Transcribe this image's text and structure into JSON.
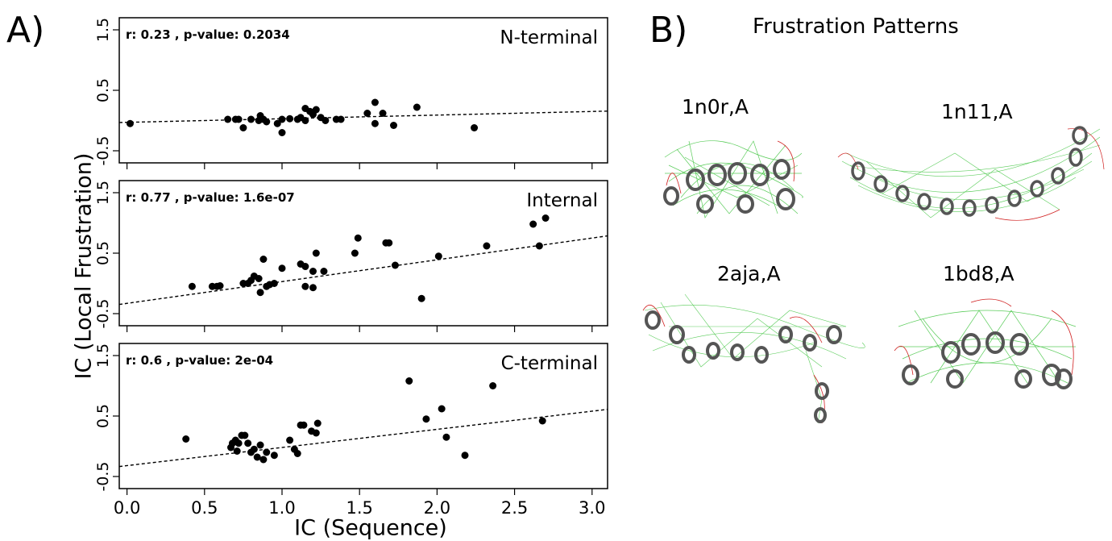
{
  "panel_a_letter": "A)",
  "panel_b_letter": "B)",
  "ylabel": "IC (Local Frustration)",
  "xlabel": "IC (Sequence)",
  "chart_data": [
    {
      "type": "scatter",
      "name": "N-terminal",
      "annotation": "r:  0.23 , p-value:  0.2034",
      "xlim": [
        -0.05,
        3.1
      ],
      "ylim": [
        -0.7,
        1.7
      ],
      "yticks": [
        "-0.5",
        "0.5",
        "1.5"
      ],
      "xticks": [],
      "fit": {
        "slope": 0.06,
        "intercept": -0.03
      },
      "points": [
        [
          0.02,
          -0.05
        ],
        [
          0.65,
          0.02
        ],
        [
          0.7,
          0.02
        ],
        [
          0.72,
          0.02
        ],
        [
          0.75,
          -0.12
        ],
        [
          0.8,
          0.02
        ],
        [
          0.85,
          0.0
        ],
        [
          0.86,
          0.08
        ],
        [
          0.88,
          0.02
        ],
        [
          0.9,
          -0.02
        ],
        [
          0.97,
          -0.05
        ],
        [
          1.0,
          0.02
        ],
        [
          1.0,
          -0.2
        ],
        [
          1.05,
          0.03
        ],
        [
          1.1,
          0.02
        ],
        [
          1.12,
          0.05
        ],
        [
          1.15,
          0.2
        ],
        [
          1.15,
          0.0
        ],
        [
          1.18,
          0.15
        ],
        [
          1.2,
          0.1
        ],
        [
          1.22,
          0.18
        ],
        [
          1.25,
          0.05
        ],
        [
          1.28,
          0.0
        ],
        [
          1.35,
          0.02
        ],
        [
          1.38,
          0.02
        ],
        [
          1.55,
          0.12
        ],
        [
          1.6,
          0.3
        ],
        [
          1.6,
          -0.05
        ],
        [
          1.65,
          0.12
        ],
        [
          1.72,
          -0.08
        ],
        [
          1.87,
          0.22
        ],
        [
          2.24,
          -0.12
        ]
      ]
    },
    {
      "type": "scatter",
      "name": "Internal",
      "annotation": "r:  0.77 , p-value:  1.6e-07",
      "xlim": [
        -0.05,
        3.1
      ],
      "ylim": [
        -0.7,
        1.7
      ],
      "yticks": [
        "-0.5",
        "0.5",
        "1.5"
      ],
      "xticks": [],
      "fit": {
        "slope": 0.36,
        "intercept": -0.33
      },
      "points": [
        [
          0.42,
          -0.05
        ],
        [
          0.55,
          -0.05
        ],
        [
          0.58,
          -0.05
        ],
        [
          0.6,
          -0.04
        ],
        [
          0.75,
          0.0
        ],
        [
          0.78,
          0.0
        ],
        [
          0.8,
          0.05
        ],
        [
          0.82,
          0.12
        ],
        [
          0.85,
          0.08
        ],
        [
          0.86,
          -0.15
        ],
        [
          0.88,
          0.4
        ],
        [
          0.9,
          -0.05
        ],
        [
          0.92,
          -0.02
        ],
        [
          0.95,
          0.0
        ],
        [
          1.0,
          0.25
        ],
        [
          1.12,
          0.32
        ],
        [
          1.15,
          0.28
        ],
        [
          1.15,
          -0.05
        ],
        [
          1.2,
          0.2
        ],
        [
          1.2,
          -0.07
        ],
        [
          1.22,
          0.5
        ],
        [
          1.27,
          0.2
        ],
        [
          1.47,
          0.5
        ],
        [
          1.49,
          0.75
        ],
        [
          1.67,
          0.67
        ],
        [
          1.69,
          0.67
        ],
        [
          1.73,
          0.3
        ],
        [
          1.9,
          -0.25
        ],
        [
          2.01,
          0.45
        ],
        [
          2.32,
          0.62
        ],
        [
          2.62,
          0.98
        ],
        [
          2.66,
          0.62
        ],
        [
          2.7,
          1.08
        ]
      ]
    },
    {
      "type": "scatter",
      "name": "C-terminal",
      "annotation": "r:  0.6 , p-value:  2e-04",
      "xlim": [
        -0.05,
        3.1
      ],
      "ylim": [
        -0.7,
        1.7
      ],
      "yticks": [
        "-0.5",
        "0.5",
        "1.5"
      ],
      "xticks": [
        "0.0",
        "0.5",
        "1.0",
        "1.5",
        "2.0",
        "2.5",
        "3.0"
      ],
      "fit": {
        "slope": 0.3,
        "intercept": -0.32
      },
      "points": [
        [
          0.38,
          0.12
        ],
        [
          0.67,
          -0.02
        ],
        [
          0.68,
          0.05
        ],
        [
          0.7,
          0.1
        ],
        [
          0.71,
          -0.08
        ],
        [
          0.72,
          0.05
        ],
        [
          0.74,
          0.18
        ],
        [
          0.76,
          0.18
        ],
        [
          0.78,
          0.05
        ],
        [
          0.8,
          -0.1
        ],
        [
          0.82,
          -0.05
        ],
        [
          0.84,
          -0.18
        ],
        [
          0.86,
          0.02
        ],
        [
          0.88,
          -0.22
        ],
        [
          0.9,
          -0.1
        ],
        [
          0.95,
          -0.15
        ],
        [
          1.05,
          0.1
        ],
        [
          1.08,
          -0.05
        ],
        [
          1.1,
          -0.12
        ],
        [
          1.12,
          0.35
        ],
        [
          1.14,
          0.35
        ],
        [
          1.19,
          0.25
        ],
        [
          1.22,
          0.22
        ],
        [
          1.23,
          0.38
        ],
        [
          1.82,
          1.08
        ],
        [
          1.93,
          0.45
        ],
        [
          2.03,
          0.62
        ],
        [
          2.06,
          0.15
        ],
        [
          2.18,
          -0.15
        ],
        [
          2.36,
          1.0
        ],
        [
          2.68,
          0.42
        ]
      ]
    }
  ],
  "frustration_title": "Frustration Patterns",
  "structures": [
    {
      "label": "1n0r,A"
    },
    {
      "label": "1n11,A"
    },
    {
      "label": "2aja,A"
    },
    {
      "label": "1bd8,A"
    }
  ]
}
